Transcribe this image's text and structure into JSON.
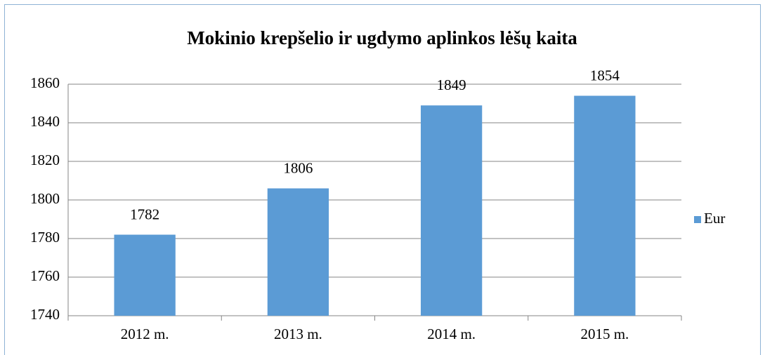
{
  "chart_data": {
    "type": "bar",
    "title": "Mokinio krepšelio ir ugdymo aplinkos lėšų kaita",
    "categories": [
      "2012 m.",
      "2013 m.",
      "2014 m.",
      "2015 m."
    ],
    "series": [
      {
        "name": "Eur",
        "color": "#5b9bd5",
        "values": [
          1782,
          1806,
          1849,
          1854
        ]
      }
    ],
    "ylim": [
      1740,
      1860
    ],
    "yticks": [
      1740,
      1760,
      1780,
      1800,
      1820,
      1840,
      1860
    ],
    "grid": true,
    "legend": "right"
  }
}
